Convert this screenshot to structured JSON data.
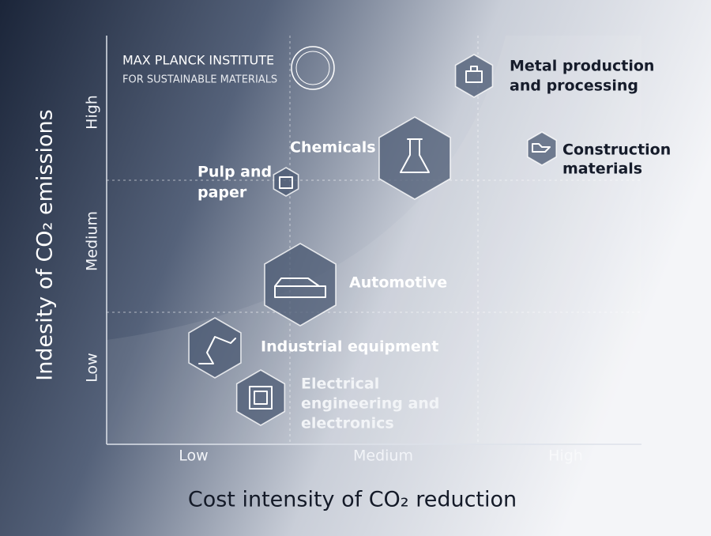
{
  "logo": {
    "line1": "MAX PLANCK INSTITUTE",
    "line2": "FOR SUSTAINABLE MATERIALS"
  },
  "y_axis": {
    "title": "Indesity of CO₂ emissions",
    "ticks": [
      "Low",
      "Medium",
      "High"
    ]
  },
  "x_axis": {
    "title": "Cost intensity of CO₂ reduction",
    "ticks": [
      "Low",
      "Medium",
      "High"
    ]
  },
  "nodes": [
    {
      "lines": [
        "Metal production",
        "and processing"
      ]
    },
    {
      "lines": [
        "Construction",
        "materials"
      ]
    },
    {
      "lines": [
        "Chemicals"
      ]
    },
    {
      "lines": [
        "Pulp and",
        "paper"
      ]
    },
    {
      "lines": [
        "Automotive"
      ]
    },
    {
      "lines": [
        "Industrial equipment"
      ]
    },
    {
      "lines": [
        "Electrical",
        "engineering and",
        "electronics"
      ]
    }
  ]
}
